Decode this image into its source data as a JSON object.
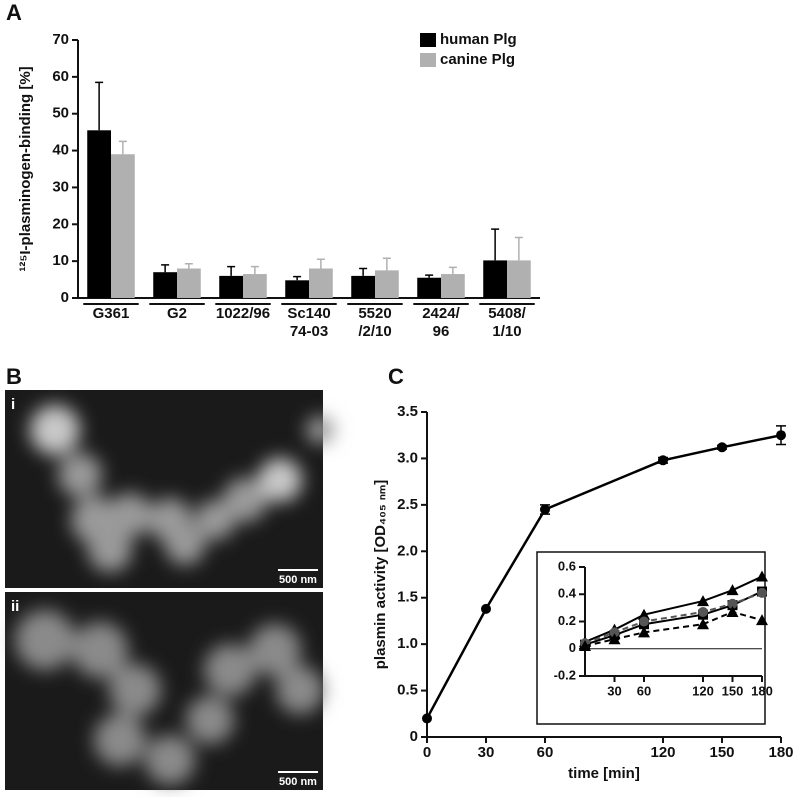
{
  "panels": {
    "a": "A",
    "b": "B",
    "c": "C"
  },
  "images": [
    {
      "label": "i",
      "scale": "500 nm"
    },
    {
      "label": "ii",
      "scale": "500 nm"
    }
  ],
  "chart_data": [
    {
      "type": "bar",
      "ylabel": "¹²⁵I-plasminogen-binding [%]",
      "categories": [
        "G361",
        "G2",
        "1022/96",
        "Sc140\n74-03",
        "5520\n/2/10",
        "2424/\n96",
        "5408/\n1/10"
      ],
      "series": [
        {
          "name": "human Plg",
          "color": "#000000",
          "values": [
            45.5,
            7,
            6,
            4.8,
            6,
            5.5,
            10.2
          ],
          "errors": [
            13,
            2,
            2.5,
            1,
            2,
            0.7,
            8.5
          ]
        },
        {
          "name": "canine Plg",
          "color": "#b0b0b0",
          "values": [
            39,
            8,
            6.5,
            8,
            7.5,
            6.5,
            10.2
          ],
          "errors": [
            3.5,
            1.3,
            2,
            2.5,
            3.3,
            1.8,
            6.2
          ]
        }
      ],
      "ylim": [
        0,
        70
      ],
      "yticks": [
        0,
        10,
        20,
        30,
        40,
        50,
        60,
        70
      ],
      "legend": "top-right"
    },
    {
      "type": "line",
      "xlabel": "time  [min]",
      "ylabel": "plasmin activity [OD₄₀₅ ₙₘ]",
      "x": [
        0,
        30,
        60,
        120,
        150,
        180
      ],
      "series": [
        {
          "color": "#000000",
          "marker": "circle",
          "dash": false,
          "values": [
            0.2,
            1.38,
            2.45,
            2.98,
            3.12,
            3.25
          ],
          "errors": [
            0,
            0,
            0.05,
            0.03,
            0.02,
            0.1
          ]
        }
      ],
      "xlim": [
        0,
        180
      ],
      "xticks": [
        0,
        30,
        60,
        120,
        150,
        180
      ],
      "ylim": [
        0,
        3.5
      ],
      "yticks": [
        0,
        0.5,
        {
          "value": 1,
          "label": "1.0"
        },
        1.5,
        {
          "value": 2,
          "label": "2.0"
        },
        2.5,
        {
          "value": 3,
          "label": "3.0"
        },
        3.5
      ]
    },
    {
      "type": "line",
      "x": [
        0,
        30,
        60,
        120,
        150,
        180
      ],
      "series": [
        {
          "color": "#000000",
          "marker": "triangle",
          "dash": false,
          "values": [
            0.05,
            0.14,
            0.25,
            0.35,
            0.43,
            0.53
          ]
        },
        {
          "color": "#000000",
          "marker": "square",
          "dash": false,
          "values": [
            0.03,
            0.1,
            0.18,
            0.25,
            0.32,
            0.42
          ]
        },
        {
          "color": "#555555",
          "marker": "circle",
          "dash": true,
          "values": [
            0.04,
            0.12,
            0.2,
            0.27,
            0.33,
            0.41
          ]
        },
        {
          "color": "#000000",
          "marker": "triangle",
          "dash": true,
          "values": [
            0.02,
            0.07,
            0.12,
            0.18,
            0.27,
            0.21
          ]
        }
      ],
      "xlim": [
        0,
        180
      ],
      "xticks": [
        30,
        60,
        120,
        150,
        180
      ],
      "ylim": [
        -0.2,
        0.6
      ],
      "yticks": [
        -0.2,
        0,
        0.2,
        0.4,
        0.6
      ]
    }
  ]
}
